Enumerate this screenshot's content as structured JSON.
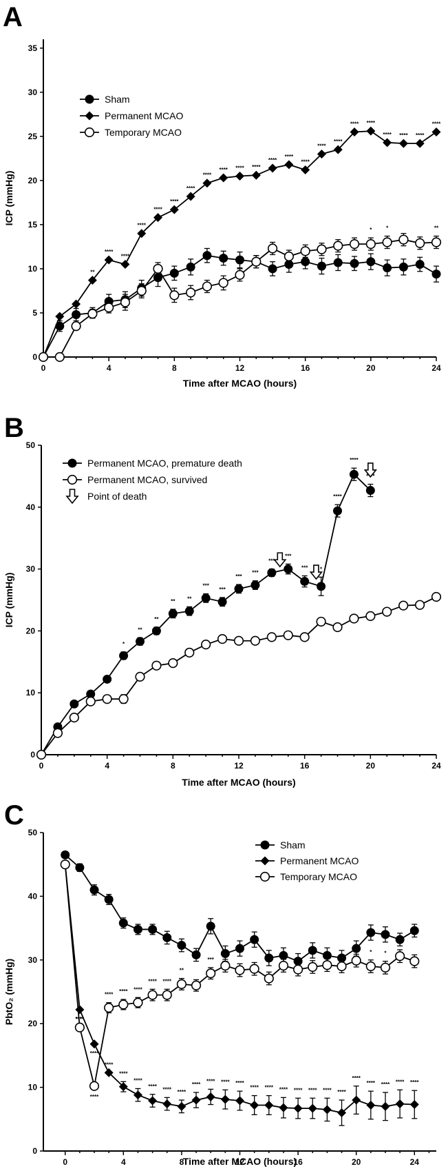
{
  "charts": [
    {
      "letter": "A",
      "type": "line",
      "xlabel": "Time after MCAO (hours)",
      "ylabel": "ICP (mmHg)",
      "xlim": [
        0,
        24
      ],
      "ylim": [
        0,
        36
      ],
      "xticks": [
        0,
        4,
        8,
        12,
        16,
        20,
        24
      ],
      "yticks": [
        0,
        5,
        10,
        15,
        20,
        25,
        30,
        35
      ],
      "legend": [
        "Sham",
        "Permanent MCAO",
        "Temporary MCAO"
      ],
      "series": [
        {
          "name": "Sham",
          "marker": "filled-circle",
          "x": [
            0,
            1,
            2,
            3,
            4,
            5,
            6,
            7,
            8,
            9,
            10,
            11,
            12,
            13,
            14,
            15,
            16,
            17,
            18,
            19,
            20,
            21,
            22,
            23,
            24
          ],
          "y": [
            0,
            3.5,
            4.8,
            5.0,
            6.3,
            6.5,
            7.8,
            9.0,
            9.5,
            10.2,
            11.5,
            11.2,
            11.0,
            10.8,
            10.0,
            10.5,
            10.8,
            10.3,
            10.7,
            10.6,
            10.8,
            10.1,
            10.2,
            10.5,
            9.4
          ],
          "err": [
            0,
            0.6,
            0.7,
            0.6,
            0.8,
            0.9,
            0.9,
            1.0,
            0.8,
            0.9,
            0.8,
            0.8,
            0.9,
            0.7,
            0.8,
            0.9,
            0.8,
            0.9,
            0.9,
            0.8,
            0.9,
            0.9,
            0.9,
            0.8,
            0.9
          ],
          "stars": []
        },
        {
          "name": "Permanent MCAO",
          "marker": "filled-diamond",
          "x": [
            0,
            1,
            2,
            3,
            4,
            5,
            6,
            7,
            8,
            9,
            10,
            11,
            12,
            13,
            14,
            15,
            16,
            17,
            18,
            19,
            20,
            21,
            22,
            23,
            24
          ],
          "y": [
            0,
            4.6,
            6.0,
            8.7,
            11.0,
            10.5,
            14.0,
            15.8,
            16.7,
            18.2,
            19.7,
            20.3,
            20.5,
            20.6,
            21.4,
            21.8,
            21.2,
            23.0,
            23.5,
            25.5,
            25.6,
            24.3,
            24.2,
            24.2,
            25.5
          ],
          "err": [
            0,
            0,
            0,
            0,
            0,
            0,
            0,
            0,
            0,
            0,
            0,
            0,
            0,
            0,
            0,
            0,
            0,
            0,
            0,
            0,
            0,
            0,
            0,
            0,
            0
          ],
          "stars": [
            "",
            "",
            "",
            "**",
            "****",
            "****",
            "****",
            "****",
            "****",
            "****",
            "****",
            "****",
            "****",
            "****",
            "****",
            "****",
            "****",
            "****",
            "****",
            "****",
            "****",
            "****",
            "****",
            "****",
            "****"
          ]
        },
        {
          "name": "Temporary MCAO",
          "marker": "open-circle",
          "x": [
            0,
            1,
            2,
            3,
            4,
            5,
            6,
            7,
            8,
            9,
            10,
            11,
            12,
            13,
            14,
            15,
            16,
            17,
            18,
            19,
            20,
            21,
            22,
            23,
            24
          ],
          "y": [
            0,
            0,
            3.5,
            4.9,
            5.6,
            6.2,
            7.5,
            10.0,
            7.0,
            7.3,
            8.0,
            8.4,
            9.3,
            10.8,
            12.3,
            11.4,
            12.0,
            12.2,
            12.6,
            12.8,
            12.8,
            13.0,
            13.3,
            12.9,
            13.0
          ],
          "err": [
            0,
            0,
            0.4,
            0.5,
            0.6,
            0.9,
            0.8,
            0.7,
            0.8,
            0.8,
            0.7,
            0.8,
            0.7,
            0.7,
            0.7,
            0.7,
            0.7,
            0.7,
            0.7,
            0.7,
            0.7,
            0.7,
            0.7,
            0.7,
            0.7
          ],
          "stars": [
            "",
            "",
            "",
            "",
            "",
            "",
            "",
            "",
            "",
            "",
            "",
            "",
            "",
            "",
            "",
            "",
            "",
            "",
            "",
            "",
            "*",
            "*",
            "",
            "",
            "**"
          ]
        }
      ]
    },
    {
      "letter": "B",
      "type": "line",
      "xlabel": "Time after MCAO (hours)",
      "ylabel": "ICP (mmHg)",
      "xlim": [
        0,
        24
      ],
      "ylim": [
        0,
        50
      ],
      "xticks": [
        0,
        4,
        8,
        12,
        16,
        20,
        24
      ],
      "yticks": [
        0,
        10,
        20,
        30,
        40,
        50
      ],
      "legend": [
        "Permanent MCAO, premature death",
        "Permanent MCAO, survived",
        "Point of death"
      ],
      "series": [
        {
          "name": "Permanent MCAO, premature death",
          "marker": "filled-circle",
          "x": [
            0,
            1,
            2,
            3,
            4,
            5,
            6,
            7,
            8,
            9,
            10,
            11,
            12,
            13,
            14,
            15,
            16,
            17,
            18,
            19,
            20
          ],
          "y": [
            0,
            4.5,
            8.2,
            9.8,
            12.2,
            16.0,
            18.3,
            20.0,
            22.8,
            23.2,
            25.3,
            24.7,
            26.8,
            27.4,
            29.4,
            30.0,
            28.0,
            27.2,
            39.4,
            45.3,
            42.7
          ],
          "err": [
            0,
            0.3,
            0.3,
            0.3,
            0.3,
            0.6,
            0.6,
            0.6,
            0.7,
            0.7,
            0.7,
            0.7,
            0.7,
            0.7,
            0.6,
            0.8,
            0.9,
            1.5,
            1.0,
            1.0,
            1.0
          ],
          "stars": [
            "",
            "",
            "",
            "",
            "",
            "*",
            "**",
            "**",
            "**",
            "**",
            "***",
            "***",
            "***",
            "***",
            "***",
            "***",
            "***",
            "*",
            "****",
            "****",
            "****"
          ]
        },
        {
          "name": "Permanent MCAO, survived",
          "marker": "open-circle",
          "x": [
            0,
            1,
            2,
            3,
            4,
            5,
            6,
            7,
            8,
            9,
            10,
            11,
            12,
            13,
            14,
            15,
            16,
            17,
            18,
            19,
            20,
            21,
            22,
            23,
            24
          ],
          "y": [
            0,
            3.5,
            6.0,
            8.6,
            9.0,
            9.0,
            12.6,
            14.4,
            14.8,
            16.5,
            17.8,
            18.7,
            18.4,
            18.4,
            19.0,
            19.3,
            19.0,
            21.5,
            20.6,
            22.0,
            22.4,
            23.1,
            24.1,
            24.2,
            25.5
          ],
          "err": [
            0,
            0,
            0,
            0,
            0,
            0.7,
            0,
            0,
            0,
            0,
            0,
            0,
            0,
            0,
            0,
            0,
            0,
            0,
            0,
            0,
            0,
            0,
            0,
            0,
            0
          ],
          "stars": []
        }
      ],
      "death_points": [
        {
          "x": 14.5,
          "y": 31.5
        },
        {
          "x": 16.7,
          "y": 29.5
        },
        {
          "x": 20.0,
          "y": 46.0
        }
      ]
    },
    {
      "letter": "C",
      "type": "line",
      "xlabel": "Time after MCAO (hours)",
      "ylabel": "PbtO₂ (mmHg)",
      "xlim": [
        -1.5,
        25.5
      ],
      "ylim": [
        0,
        50
      ],
      "xticks": [
        0,
        4,
        8,
        12,
        16,
        20,
        24
      ],
      "yticks": [
        0,
        10,
        20,
        30,
        40,
        50
      ],
      "legend": [
        "Sham",
        "Permanent MCAO",
        "Temporary MCAO"
      ],
      "series": [
        {
          "name": "Sham",
          "marker": "filled-circle",
          "x": [
            0,
            1,
            2,
            3,
            4,
            5,
            6,
            7,
            8,
            9,
            10,
            11,
            12,
            13,
            14,
            15,
            16,
            17,
            18,
            19,
            20,
            21,
            22,
            23,
            24
          ],
          "y": [
            46.5,
            44.5,
            41.0,
            39.5,
            35.8,
            34.8,
            34.8,
            33.5,
            32.3,
            30.8,
            35.3,
            31.0,
            31.8,
            33.2,
            30.3,
            30.7,
            29.8,
            31.5,
            30.7,
            30.3,
            31.8,
            34.3,
            34.0,
            33.2,
            34.6
          ],
          "err": [
            0.5,
            0.6,
            0.8,
            0.8,
            0.8,
            0.8,
            0.8,
            1.0,
            1.0,
            1.0,
            1.2,
            1.2,
            1.2,
            1.2,
            1.2,
            1.2,
            1.2,
            1.2,
            1.2,
            1.2,
            1.2,
            1.2,
            1.2,
            1.0,
            1.0
          ],
          "stars": []
        },
        {
          "name": "Permanent MCAO",
          "marker": "filled-diamond",
          "x": [
            0,
            1,
            2,
            3,
            4,
            5,
            6,
            7,
            8,
            9,
            10,
            11,
            12,
            13,
            14,
            15,
            16,
            17,
            18,
            19,
            20,
            21,
            22,
            23,
            24
          ],
          "y": [
            45.0,
            22.2,
            16.8,
            12.3,
            10.1,
            8.8,
            7.9,
            7.4,
            7.0,
            8.0,
            8.5,
            8.1,
            7.9,
            7.2,
            7.2,
            6.8,
            6.7,
            6.7,
            6.5,
            6.0,
            8.0,
            7.2,
            7.0,
            7.4,
            7.3
          ],
          "err": [
            0,
            0,
            0,
            0,
            0.8,
            1.0,
            1.0,
            1.0,
            1.0,
            1.2,
            1.2,
            1.5,
            1.5,
            1.5,
            1.5,
            1.6,
            1.6,
            1.6,
            1.8,
            2.0,
            2.2,
            2.2,
            2.2,
            2.2,
            2.2
          ],
          "stars": [
            "",
            "****",
            "****",
            "****",
            "****",
            "****",
            "****",
            "****",
            "****",
            "****",
            "****",
            "****",
            "****",
            "****",
            "****",
            "****",
            "****",
            "****",
            "****",
            "****",
            "****",
            "****",
            "****",
            "****",
            "****"
          ]
        },
        {
          "name": "Temporary MCAO",
          "marker": "open-circle",
          "x": [
            0,
            1,
            2,
            3,
            4,
            5,
            6,
            7,
            8,
            9,
            10,
            11,
            12,
            13,
            14,
            15,
            16,
            17,
            18,
            19,
            20,
            21,
            22,
            23,
            24
          ],
          "y": [
            45.0,
            19.4,
            10.2,
            22.5,
            23.0,
            23.3,
            24.5,
            24.5,
            26.2,
            26.0,
            27.9,
            29.1,
            28.4,
            28.6,
            27.1,
            29.1,
            28.5,
            28.9,
            29.2,
            29.0,
            29.9,
            29.0,
            28.8,
            30.6,
            29.8
          ],
          "err": [
            0,
            0,
            0,
            0.8,
            0.8,
            0.8,
            0.9,
            0.9,
            0.9,
            0.9,
            0.9,
            1.0,
            1.0,
            1.0,
            1.0,
            1.0,
            1.0,
            1.0,
            1.0,
            1.0,
            1.0,
            1.0,
            1.0,
            1.0,
            1.0
          ],
          "stars": [
            "",
            "****",
            "****",
            "****",
            "****",
            "****",
            "****",
            "****",
            "**",
            "",
            "***",
            "",
            "",
            "",
            "",
            "",
            "",
            "",
            "",
            "",
            "",
            "*",
            "*",
            "",
            ""
          ]
        }
      ]
    }
  ]
}
